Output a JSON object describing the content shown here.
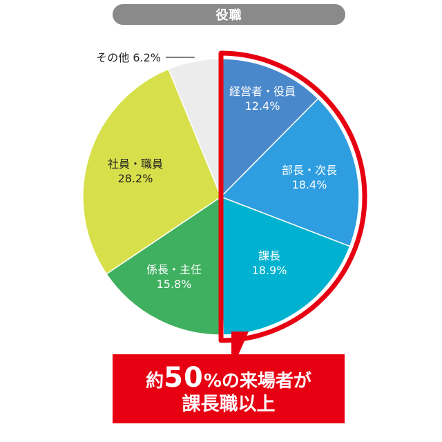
{
  "header": {
    "title": "役職"
  },
  "chart_data": {
    "type": "pie",
    "title": "役職",
    "start_angle_deg": 0,
    "direction": "clockwise",
    "slices": [
      {
        "label": "経営者・役員",
        "value": 12.4,
        "value_text": "12.4%",
        "color": "#4a88cc",
        "highlighted": true
      },
      {
        "label": "部長・次長",
        "value": 18.4,
        "value_text": "18.4%",
        "color": "#2e9ee0",
        "highlighted": true
      },
      {
        "label": "課長",
        "value": 18.9,
        "value_text": "18.9%",
        "color": "#00b2cf",
        "highlighted": true
      },
      {
        "label": "係長・主任",
        "value": 15.8,
        "value_text": "15.8%",
        "color": "#3fb060",
        "highlighted": false
      },
      {
        "label": "社員・職員",
        "value": 28.2,
        "value_text": "28.2%",
        "color": "#d7e04a",
        "highlighted": false
      },
      {
        "label": "その他",
        "value": 6.2,
        "value_text": "6.2%",
        "color": "#ececec",
        "highlighted": false
      }
    ],
    "highlight_color": "#e60012"
  },
  "callout": {
    "prefix": "約",
    "number": "50",
    "suffix": "%の来場者が",
    "line2": "課長職以上"
  }
}
